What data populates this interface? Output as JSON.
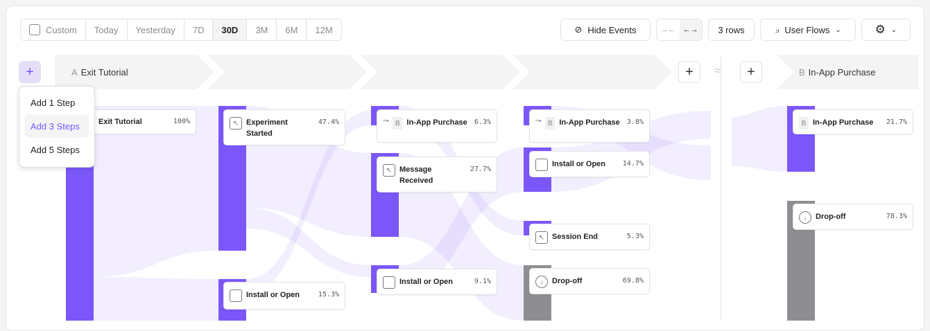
{
  "date_range": {
    "custom": "Custom",
    "options": [
      "Today",
      "Yesterday",
      "7D",
      "30D",
      "3M",
      "6M",
      "12M"
    ],
    "selected": "30D"
  },
  "toolbar": {
    "hide_events": "Hide Events",
    "rows": "3 rows",
    "chart_type": "User Flows"
  },
  "steps": {
    "a_letter": "A",
    "a_label": "Exit Tutorial",
    "b_letter": "B",
    "b_label": "In-App Purchase"
  },
  "menu": {
    "items": [
      "Add 1 Step",
      "Add 3 Steps",
      "Add 5 Steps"
    ],
    "highlighted": "Add 3 Steps"
  },
  "nodes": [
    {
      "name": "Exit Tutorial",
      "pct": "100%"
    },
    {
      "name": "Experiment Started",
      "pct": "47.4%"
    },
    {
      "name": "Install or Open",
      "pct": "15.3%"
    },
    {
      "badge": "B",
      "name": "In-App Purchase",
      "pct": "6.3%"
    },
    {
      "name": "Message Received",
      "pct": "27.7%"
    },
    {
      "name": "Install or Open",
      "pct": "9.1%"
    },
    {
      "badge": "B",
      "name": "In-App Purchase",
      "pct": "3.8%"
    },
    {
      "name": "Install or Open",
      "pct": "14.7%"
    },
    {
      "name": "Session End",
      "pct": "5.3%"
    },
    {
      "name": "Drop-off",
      "pct": "69.8%"
    },
    {
      "badge": "B",
      "name": "In-App Purchase",
      "pct": "21.7%"
    },
    {
      "name": "Drop-off",
      "pct": "78.3%"
    }
  ],
  "colors": {
    "accent": "#7b57fa",
    "dropoff": "#8e8e92",
    "flow": "#ece8fd"
  }
}
